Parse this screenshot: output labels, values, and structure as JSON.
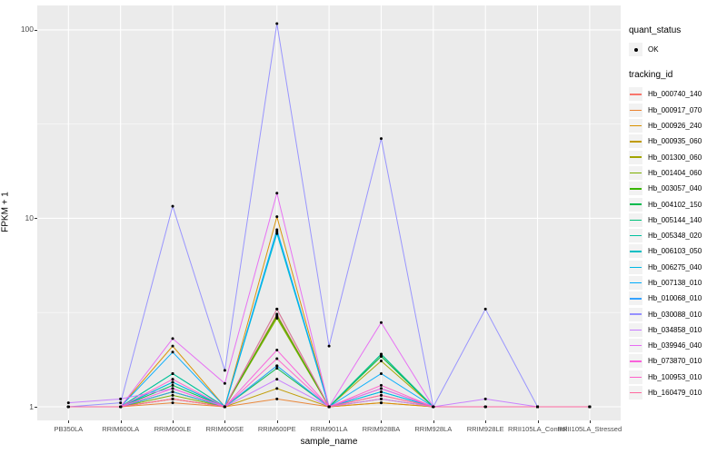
{
  "figure": {
    "background": "#FFFFFF",
    "panel_background": "#EBEBEB",
    "grid_major_color": "#FFFFFF",
    "grid_minor_color": "#FFFFFF",
    "point_color": "#000000",
    "axis_text_color": "#4D4D4D"
  },
  "chart_data": {
    "type": "line",
    "title": "",
    "xlabel": "sample_name",
    "ylabel": "FPKM + 1",
    "y_scale": "log10",
    "y_ticks": [
      1,
      10,
      100
    ],
    "y_minor_ticks": [
      3.1623,
      31.623
    ],
    "ylim": [
      1,
      120
    ],
    "grid": true,
    "legend_position": "right",
    "categories": [
      "PB350LA",
      "RRIM600LA",
      "RRIM600LE",
      "RRIM600SE",
      "RRIM600PE",
      "RRIM901LA",
      "RRIM928BA",
      "RRIM928LA",
      "RRIM928LE",
      "RRII105LA_Control",
      "RRII105LA_Stressed"
    ],
    "legend": {
      "quant_status": {
        "title": "quant_status",
        "entries": [
          {
            "label": "OK",
            "marker": "black-point"
          }
        ]
      },
      "tracking_id": {
        "title": "tracking_id"
      }
    },
    "series": [
      {
        "name": "Hb_000740_140",
        "color": "#F8766D",
        "values": [
          1,
          1,
          1.1,
          1,
          3.1,
          1,
          1.15,
          1,
          1,
          1,
          1
        ]
      },
      {
        "name": "Hb_000917_070",
        "color": "#EA8331",
        "values": [
          1,
          1,
          1.05,
          1,
          1.1,
          1,
          1.05,
          1,
          1,
          1,
          1
        ]
      },
      {
        "name": "Hb_000926_240",
        "color": "#D89000",
        "values": [
          1,
          1,
          2.1,
          1,
          10.2,
          1,
          1.05,
          1,
          1,
          1,
          1
        ]
      },
      {
        "name": "Hb_000935_060",
        "color": "#C09B00",
        "values": [
          1,
          1,
          1.1,
          1,
          1.25,
          1,
          1.1,
          1,
          1,
          1,
          1
        ]
      },
      {
        "name": "Hb_001300_060",
        "color": "#A3A500",
        "values": [
          1,
          1,
          1.2,
          1,
          3.0,
          1,
          1.75,
          1,
          1,
          1,
          1
        ]
      },
      {
        "name": "Hb_001404_060",
        "color": "#7CAE00",
        "values": [
          1,
          1,
          1.15,
          1,
          2.95,
          1,
          1.85,
          1,
          1,
          1,
          1
        ]
      },
      {
        "name": "Hb_003057_040",
        "color": "#39B600",
        "values": [
          1,
          1,
          1.2,
          1,
          3.05,
          1,
          1.9,
          1,
          1,
          1,
          1
        ]
      },
      {
        "name": "Hb_004102_150",
        "color": "#00BB4E",
        "values": [
          1,
          1,
          1.3,
          1,
          1.6,
          1,
          1.85,
          1,
          1,
          1,
          1
        ]
      },
      {
        "name": "Hb_005144_140",
        "color": "#00C079",
        "values": [
          1,
          1,
          1.5,
          1,
          3.3,
          1,
          1.9,
          1,
          1,
          1,
          1
        ]
      },
      {
        "name": "Hb_005348_020",
        "color": "#00C19F",
        "values": [
          1,
          1,
          1.5,
          1,
          1.65,
          1,
          1.9,
          1,
          1,
          1,
          1
        ]
      },
      {
        "name": "Hb_006103_050",
        "color": "#00BFC4",
        "values": [
          1,
          1,
          1.35,
          1,
          8.3,
          1,
          1.2,
          1,
          1,
          1,
          1
        ]
      },
      {
        "name": "Hb_006275_040",
        "color": "#00B8E5",
        "values": [
          1,
          1,
          1.35,
          1,
          8.5,
          1,
          1.2,
          1,
          1,
          1,
          1
        ]
      },
      {
        "name": "Hb_007138_010",
        "color": "#00ACFC",
        "values": [
          1,
          1,
          1.95,
          1,
          8.7,
          1,
          1.5,
          1,
          1,
          1,
          1
        ]
      },
      {
        "name": "Hb_010068_010",
        "color": "#35A2FF",
        "values": [
          1,
          1,
          1.2,
          1,
          1.65,
          1,
          1.25,
          1,
          1,
          1,
          1
        ]
      },
      {
        "name": "Hb_030088_010",
        "color": "#9590FF",
        "values": [
          1,
          1.05,
          11.6,
          1.56,
          108,
          2.1,
          26.5,
          1,
          3.3,
          1,
          1
        ]
      },
      {
        "name": "Hb_034858_010",
        "color": "#C77CFF",
        "values": [
          1.05,
          1.1,
          1.25,
          1,
          1.4,
          1,
          1.1,
          1,
          1.1,
          1,
          1
        ]
      },
      {
        "name": "Hb_039946_040",
        "color": "#E76BF3",
        "values": [
          1,
          1,
          2.3,
          1.33,
          13.6,
          1,
          2.8,
          1,
          1,
          1,
          1
        ]
      },
      {
        "name": "Hb_073870_010",
        "color": "#FA62DB",
        "values": [
          1,
          1,
          1.25,
          1,
          2.0,
          1,
          1.25,
          1,
          1,
          1,
          1
        ]
      },
      {
        "name": "Hb_100953_010",
        "color": "#FF61C9",
        "values": [
          1,
          1,
          1.4,
          1,
          1.8,
          1,
          1.3,
          1,
          1,
          1,
          1
        ]
      },
      {
        "name": "Hb_160479_010",
        "color": "#FF689F",
        "values": [
          1,
          1,
          1.1,
          1,
          3.3,
          1,
          1.15,
          1,
          1,
          1,
          1
        ]
      }
    ]
  }
}
